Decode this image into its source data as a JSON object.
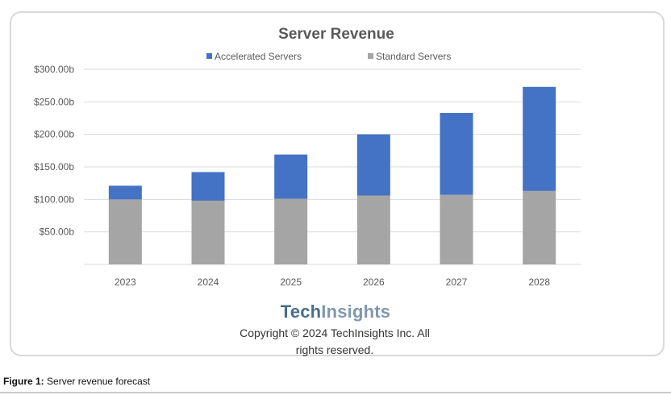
{
  "chart_data": {
    "type": "bar",
    "stacked": true,
    "title": "Server Revenue",
    "categories": [
      "2023",
      "2024",
      "2025",
      "2026",
      "2027",
      "2028"
    ],
    "series": [
      {
        "name": "Standard Servers",
        "color": "#a5a5a5",
        "values": [
          100,
          98,
          101,
          106,
          107,
          113
        ]
      },
      {
        "name": "Accelerated Servers",
        "color": "#4472c4",
        "values": [
          21,
          44,
          68,
          94,
          126,
          160
        ]
      }
    ],
    "legend": [
      "Accelerated Servers",
      "Standard Servers"
    ],
    "legend_position": "top",
    "ylim": [
      0,
      300
    ],
    "yticks": [
      50,
      100,
      150,
      200,
      250,
      300
    ],
    "ytick_labels": [
      "$50.00b",
      "$100.00b",
      "$150.00b",
      "$200.00b",
      "$250.00b",
      "$300.00b"
    ],
    "grid": true,
    "xlabel": "",
    "ylabel": ""
  },
  "brand": {
    "part1": "Tech",
    "part2": "Insights"
  },
  "copyright": {
    "line1": "Copyright © 2024 TechInsights Inc.  All",
    "line2": "rights reserved."
  },
  "caption": {
    "label": "Figure 1:",
    "text": "Server revenue forecast"
  }
}
